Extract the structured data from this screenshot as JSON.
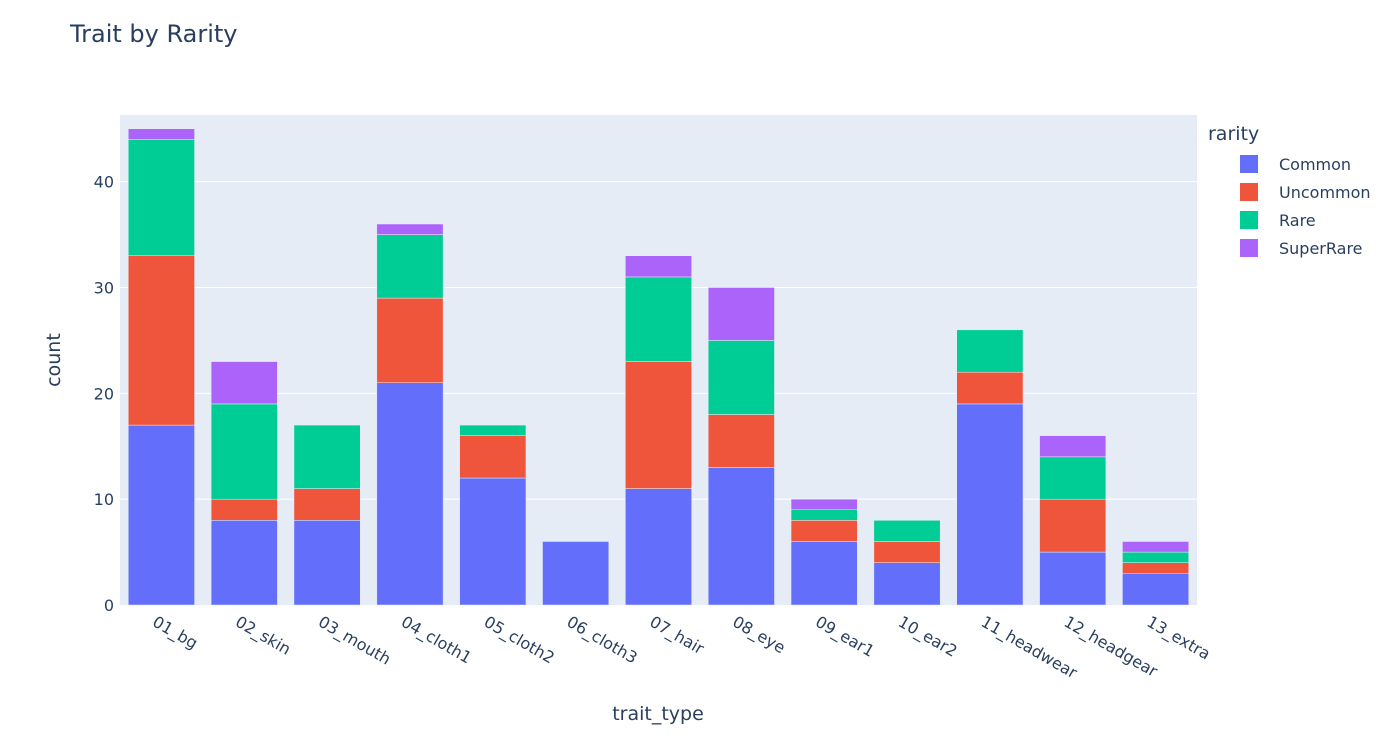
{
  "chart_data": {
    "type": "bar",
    "barmode": "stack",
    "title": "Trait by Rarity",
    "xlabel": "trait_type",
    "ylabel": "count",
    "ylim": [
      0,
      46.3
    ],
    "yticks": [
      0,
      10,
      20,
      30,
      40
    ],
    "grid": true,
    "legend": {
      "title": "rarity",
      "placement": "top-right"
    },
    "categories": [
      "01_bg",
      "02_skin",
      "03_mouth",
      "04_cloth1",
      "05_cloth2",
      "06_cloth3",
      "07_hair",
      "08_eye",
      "09_ear1",
      "10_ear2",
      "11_headwear",
      "12_headgear",
      "13_extra"
    ],
    "series": [
      {
        "name": "Common",
        "color": "#636efa",
        "values": [
          17,
          8,
          8,
          21,
          12,
          6,
          11,
          13,
          6,
          4,
          19,
          5,
          3
        ]
      },
      {
        "name": "Uncommon",
        "color": "#ef553b",
        "values": [
          16,
          2,
          3,
          8,
          4,
          0,
          12,
          5,
          2,
          2,
          3,
          5,
          1
        ]
      },
      {
        "name": "Rare",
        "color": "#00cc96",
        "values": [
          11,
          9,
          6,
          6,
          1,
          0,
          8,
          7,
          1,
          2,
          4,
          4,
          1
        ]
      },
      {
        "name": "SuperRare",
        "color": "#ab63fa",
        "values": [
          1,
          4,
          0,
          1,
          0,
          0,
          2,
          5,
          1,
          0,
          0,
          2,
          1
        ]
      }
    ]
  }
}
